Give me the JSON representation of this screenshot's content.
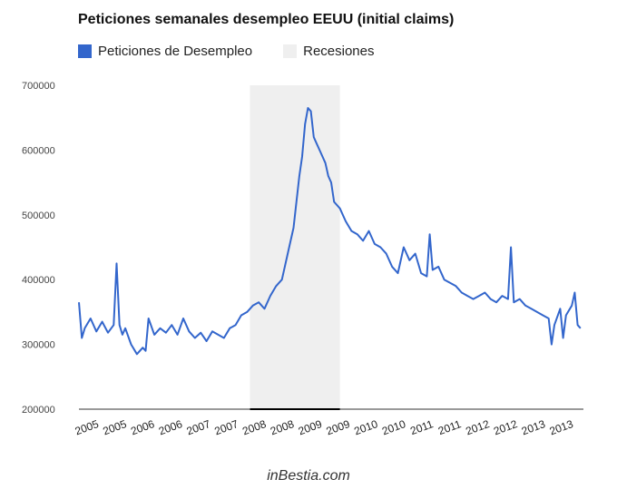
{
  "chart_data": {
    "type": "line",
    "title": "Peticiones semanales desempleo EEUU (initial claims)",
    "legend": [
      {
        "label": "Peticiones de Desempleo",
        "color": "#3366cc"
      },
      {
        "label": "Recesiones",
        "color": "#efefef"
      }
    ],
    "legend_position": "top-left",
    "ylim": [
      200000,
      700000
    ],
    "yticks": [
      "200000",
      "300000",
      "400000",
      "500000",
      "600000",
      "700000"
    ],
    "xlim": [
      2005.0,
      2013.7
    ],
    "xtick_labels": [
      "2005",
      "2005",
      "2006",
      "2006",
      "2007",
      "2007",
      "2008",
      "2008",
      "2009",
      "2009",
      "2010",
      "2010",
      "2011",
      "2011",
      "2012",
      "2012",
      "2013",
      "2013"
    ],
    "recession": {
      "start": 2007.95,
      "end": 2009.5
    },
    "grid": false,
    "series": [
      {
        "name": "Peticiones de Desempleo",
        "color": "#3366cc",
        "x": [
          2005.0,
          2005.05,
          2005.1,
          2005.2,
          2005.3,
          2005.4,
          2005.5,
          2005.6,
          2005.65,
          2005.7,
          2005.75,
          2005.8,
          2005.9,
          2006.0,
          2006.1,
          2006.15,
          2006.2,
          2006.3,
          2006.4,
          2006.5,
          2006.6,
          2006.7,
          2006.8,
          2006.9,
          2007.0,
          2007.1,
          2007.2,
          2007.3,
          2007.4,
          2007.5,
          2007.6,
          2007.7,
          2007.8,
          2007.9,
          2008.0,
          2008.1,
          2008.2,
          2008.3,
          2008.4,
          2008.5,
          2008.6,
          2008.7,
          2008.75,
          2008.8,
          2008.85,
          2008.9,
          2008.95,
          2009.0,
          2009.05,
          2009.1,
          2009.15,
          2009.2,
          2009.25,
          2009.3,
          2009.35,
          2009.4,
          2009.5,
          2009.6,
          2009.7,
          2009.8,
          2009.9,
          2010.0,
          2010.1,
          2010.2,
          2010.3,
          2010.4,
          2010.5,
          2010.6,
          2010.7,
          2010.8,
          2010.9,
          2011.0,
          2011.05,
          2011.1,
          2011.2,
          2011.3,
          2011.4,
          2011.5,
          2011.6,
          2011.7,
          2011.8,
          2011.9,
          2012.0,
          2012.1,
          2012.2,
          2012.3,
          2012.4,
          2012.45,
          2012.5,
          2012.6,
          2012.7,
          2012.8,
          2012.9,
          2013.0,
          2013.1,
          2013.15,
          2013.2,
          2013.3,
          2013.35,
          2013.4,
          2013.5,
          2013.55,
          2013.6,
          2013.65
        ],
        "values": [
          365000,
          310000,
          325000,
          340000,
          320000,
          335000,
          318000,
          330000,
          425000,
          330000,
          315000,
          325000,
          300000,
          285000,
          295000,
          290000,
          340000,
          315000,
          325000,
          318000,
          330000,
          315000,
          340000,
          320000,
          310000,
          318000,
          305000,
          320000,
          315000,
          310000,
          325000,
          330000,
          345000,
          350000,
          360000,
          365000,
          355000,
          375000,
          390000,
          400000,
          440000,
          480000,
          520000,
          560000,
          590000,
          640000,
          665000,
          660000,
          620000,
          610000,
          600000,
          590000,
          580000,
          560000,
          550000,
          520000,
          510000,
          490000,
          475000,
          470000,
          460000,
          475000,
          455000,
          450000,
          440000,
          420000,
          410000,
          450000,
          430000,
          440000,
          410000,
          405000,
          470000,
          415000,
          420000,
          400000,
          395000,
          390000,
          380000,
          375000,
          370000,
          375000,
          380000,
          370000,
          365000,
          375000,
          370000,
          450000,
          365000,
          370000,
          360000,
          355000,
          350000,
          345000,
          340000,
          300000,
          330000,
          355000,
          310000,
          345000,
          360000,
          380000,
          330000,
          325000
        ]
      }
    ]
  },
  "footer": {
    "text": "inBestia.com"
  }
}
